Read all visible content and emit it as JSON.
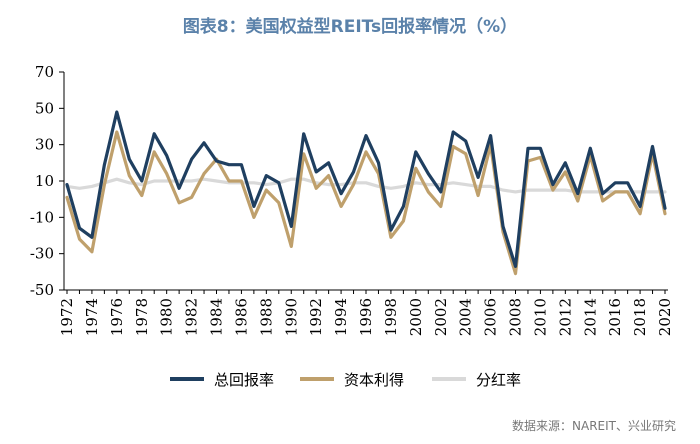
{
  "chart_data": {
    "type": "line",
    "title": "图表8：美国权益型REITs回报率情况（%）",
    "source": "数据来源：NAREIT、兴业研究",
    "x": [
      "1972",
      "1973",
      "1974",
      "1975",
      "1976",
      "1977",
      "1978",
      "1979",
      "1980",
      "1981",
      "1982",
      "1983",
      "1984",
      "1985",
      "1986",
      "1987",
      "1988",
      "1989",
      "1990",
      "1991",
      "1992",
      "1993",
      "1994",
      "1995",
      "1996",
      "1997",
      "1998",
      "1999",
      "2000",
      "2001",
      "2002",
      "2003",
      "2004",
      "2005",
      "2006",
      "2007",
      "2008",
      "2009",
      "2010",
      "2011",
      "2012",
      "2013",
      "2014",
      "2015",
      "2016",
      "2017",
      "2018",
      "2019",
      "2020"
    ],
    "x_tick_labels": [
      "1972",
      "1974",
      "1976",
      "1978",
      "1980",
      "1982",
      "1984",
      "1986",
      "1988",
      "1990",
      "1992",
      "1994",
      "1996",
      "1998",
      "2000",
      "2002",
      "2004",
      "2006",
      "2008",
      "2010",
      "2012",
      "2014",
      "2016",
      "2018",
      "2020"
    ],
    "ylim": [
      -50,
      70
    ],
    "y_ticks": [
      -50,
      -30,
      -10,
      10,
      30,
      50,
      70
    ],
    "legend_position": "bottom-center",
    "series": [
      {
        "name": "总回报率",
        "color": "#1f3f60",
        "values": [
          8,
          -16,
          -21,
          19,
          48,
          22,
          10,
          36,
          24,
          6,
          22,
          31,
          21,
          19,
          19,
          -4,
          13,
          9,
          -15,
          36,
          15,
          20,
          3,
          15,
          35,
          20,
          -17,
          -4,
          26,
          14,
          4,
          37,
          32,
          12,
          35,
          -15,
          -37,
          28,
          28,
          8,
          20,
          3,
          28,
          3,
          9,
          9,
          -4,
          29,
          -5
        ]
      },
      {
        "name": "资本利得",
        "color": "#bfa06c",
        "values": [
          1,
          -22,
          -29,
          8,
          37,
          13,
          2,
          26,
          14,
          -2,
          1,
          14,
          22,
          10,
          10,
          -10,
          5,
          -2,
          -26,
          25,
          6,
          13,
          -4,
          8,
          26,
          14,
          -21,
          -12,
          17,
          4,
          -4,
          29,
          25,
          2,
          30,
          -18,
          -41,
          21,
          23,
          5,
          15,
          -1,
          24,
          -1,
          4,
          4,
          -8,
          25,
          -8
        ]
      },
      {
        "name": "分红率",
        "color": "#d9d9d9",
        "values": [
          7,
          6,
          7,
          9,
          11,
          9,
          8,
          10,
          10,
          10,
          10,
          11,
          10,
          9,
          9,
          9,
          8,
          9,
          11,
          11,
          9,
          8,
          8,
          9,
          9,
          7,
          6,
          7,
          9,
          8,
          8,
          9,
          8,
          7,
          7,
          5,
          4,
          5,
          5,
          5,
          5,
          4,
          4,
          4,
          4,
          4,
          4,
          4,
          4
        ]
      }
    ]
  }
}
